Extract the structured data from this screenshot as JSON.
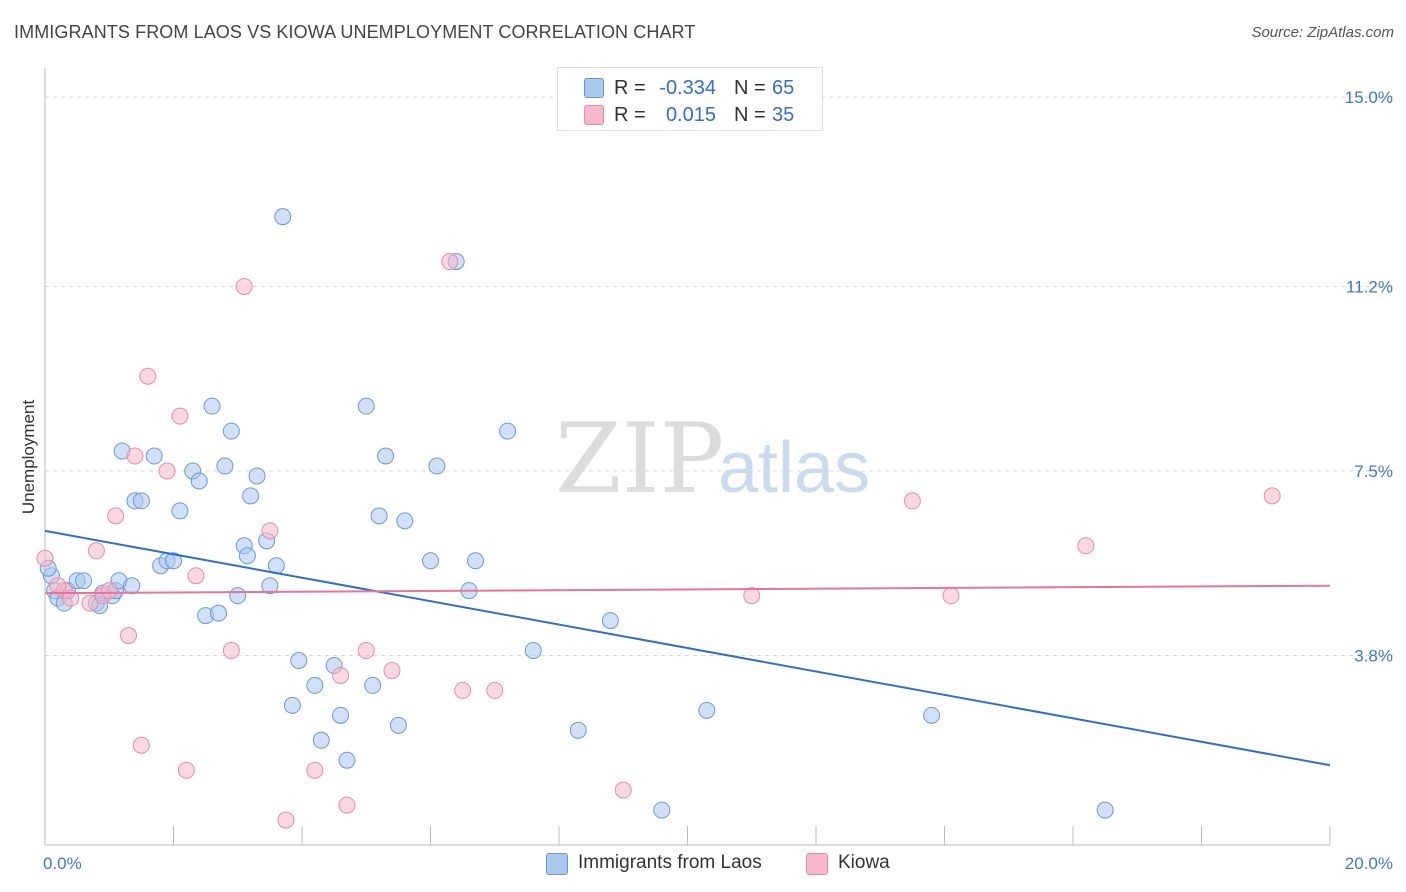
{
  "title": "IMMIGRANTS FROM LAOS VS KIOWA UNEMPLOYMENT CORRELATION CHART",
  "source": "Source: ZipAtlas.com",
  "watermark": {
    "zip": "ZIP",
    "atlas": "atlas"
  },
  "legend_top": [
    {
      "r_label": "R =",
      "r_value": "-0.334",
      "n_label": "N =",
      "n_value": "65",
      "color": "#aac8f0"
    },
    {
      "r_label": "R =",
      "r_value": "0.015",
      "n_label": "N =",
      "n_value": "35",
      "color": "#f7b8cb"
    }
  ],
  "chart_data": {
    "type": "scatter",
    "ylabel": "Unemployment",
    "xlim": [
      0,
      20
    ],
    "ylim": [
      0,
      15
    ],
    "y_ticks": [
      {
        "value": 3.8,
        "label": "3.8%"
      },
      {
        "value": 7.5,
        "label": "7.5%"
      },
      {
        "value": 11.2,
        "label": "11.2%"
      },
      {
        "value": 15.0,
        "label": "15.0%"
      }
    ],
    "x_ticks": [
      {
        "value": 0,
        "label": "0.0%"
      },
      {
        "value": 20,
        "label": "20.0%"
      }
    ],
    "grid": "horizontal-dashed",
    "legend": "bottom-center",
    "series": [
      {
        "name": "Immigrants from Laos",
        "color": "#aac8f0",
        "stroke": "#6a98d8",
        "trend": {
          "x": [
            0,
            20
          ],
          "y": [
            6.3,
            1.6
          ],
          "color": "#2f6fcf"
        },
        "points": [
          [
            0.1,
            5.4
          ],
          [
            0.15,
            5.1
          ],
          [
            0.2,
            4.95
          ],
          [
            0.3,
            4.85
          ],
          [
            0.35,
            5.1
          ],
          [
            0.5,
            5.3
          ],
          [
            0.6,
            5.3
          ],
          [
            0.8,
            4.85
          ],
          [
            0.85,
            4.8
          ],
          [
            0.9,
            5.05
          ],
          [
            1.05,
            5.0
          ],
          [
            1.1,
            5.1
          ],
          [
            1.15,
            5.3
          ],
          [
            1.35,
            5.2
          ],
          [
            1.2,
            7.9
          ],
          [
            1.4,
            6.9
          ],
          [
            1.5,
            6.9
          ],
          [
            1.7,
            7.8
          ],
          [
            1.8,
            5.6
          ],
          [
            1.9,
            5.7
          ],
          [
            2.0,
            5.7
          ],
          [
            2.1,
            6.7
          ],
          [
            2.3,
            7.5
          ],
          [
            2.4,
            7.3
          ],
          [
            2.5,
            4.6
          ],
          [
            2.6,
            8.8
          ],
          [
            2.7,
            4.65
          ],
          [
            2.8,
            7.6
          ],
          [
            2.9,
            8.3
          ],
          [
            3.0,
            5.0
          ],
          [
            3.1,
            6.0
          ],
          [
            3.15,
            5.8
          ],
          [
            3.2,
            7.0
          ],
          [
            3.3,
            7.4
          ],
          [
            3.45,
            6.1
          ],
          [
            3.5,
            5.2
          ],
          [
            3.6,
            5.6
          ],
          [
            3.7,
            12.6
          ],
          [
            3.85,
            2.8
          ],
          [
            3.95,
            3.7
          ],
          [
            4.2,
            3.2
          ],
          [
            4.3,
            2.1
          ],
          [
            4.5,
            3.6
          ],
          [
            4.6,
            2.6
          ],
          [
            4.7,
            1.7
          ],
          [
            5.0,
            8.8
          ],
          [
            5.1,
            3.2
          ],
          [
            5.2,
            6.6
          ],
          [
            5.3,
            7.8
          ],
          [
            5.5,
            2.4
          ],
          [
            5.6,
            6.5
          ],
          [
            6.0,
            5.7
          ],
          [
            6.1,
            7.6
          ],
          [
            6.4,
            11.7
          ],
          [
            6.6,
            5.1
          ],
          [
            6.7,
            5.7
          ],
          [
            7.2,
            8.3
          ],
          [
            7.6,
            3.9
          ],
          [
            8.3,
            2.3
          ],
          [
            8.8,
            4.5
          ],
          [
            9.6,
            0.7
          ],
          [
            10.3,
            2.7
          ],
          [
            13.8,
            2.6
          ],
          [
            16.5,
            0.7
          ],
          [
            0.05,
            5.55
          ]
        ]
      },
      {
        "name": "Kiowa",
        "color": "#f7b8cb",
        "stroke": "#e88aa6",
        "trend": {
          "x": [
            0,
            20
          ],
          "y": [
            5.05,
            5.2
          ],
          "color": "#e8739b"
        },
        "points": [
          [
            0.0,
            5.75
          ],
          [
            0.3,
            5.1
          ],
          [
            0.4,
            4.95
          ],
          [
            0.7,
            4.85
          ],
          [
            0.8,
            5.9
          ],
          [
            0.9,
            5.0
          ],
          [
            1.0,
            5.1
          ],
          [
            1.1,
            6.6
          ],
          [
            1.3,
            4.2
          ],
          [
            1.4,
            7.8
          ],
          [
            1.5,
            2.0
          ],
          [
            1.6,
            9.4
          ],
          [
            1.9,
            7.5
          ],
          [
            2.1,
            8.6
          ],
          [
            2.2,
            1.5
          ],
          [
            2.35,
            5.4
          ],
          [
            2.9,
            3.9
          ],
          [
            3.1,
            11.2
          ],
          [
            3.5,
            6.3
          ],
          [
            3.75,
            0.5
          ],
          [
            4.2,
            1.5
          ],
          [
            4.6,
            3.4
          ],
          [
            4.7,
            0.8
          ],
          [
            5.0,
            3.9
          ],
          [
            5.4,
            3.5
          ],
          [
            6.3,
            11.7
          ],
          [
            6.5,
            3.1
          ],
          [
            7.0,
            3.1
          ],
          [
            9.0,
            1.1
          ],
          [
            11.0,
            5.0
          ],
          [
            13.5,
            6.9
          ],
          [
            14.1,
            5.0
          ],
          [
            16.2,
            6.0
          ],
          [
            19.1,
            7.0
          ],
          [
            0.2,
            5.2
          ]
        ]
      }
    ]
  }
}
